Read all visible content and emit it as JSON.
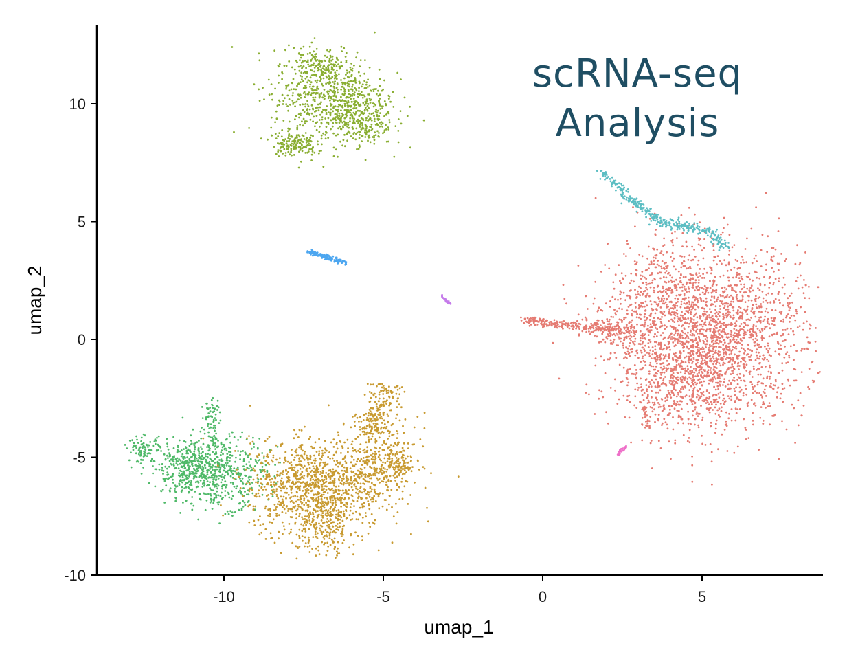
{
  "chart_data": {
    "type": "scatter",
    "title": "",
    "annotation": [
      "scRNA-seq",
      "Analysis"
    ],
    "xlabel": "umap_1",
    "ylabel": "umap_2",
    "xlim": [
      -14,
      8.8
    ],
    "ylim": [
      -10,
      13.5
    ],
    "xticks": [
      -10,
      -5,
      0,
      5
    ],
    "yticks": [
      -10,
      -5,
      0,
      5,
      10
    ],
    "xtick_labels": [
      "-10",
      "-5",
      "0",
      "5"
    ],
    "ytick_labels": [
      "-10",
      "-5",
      "0",
      "5",
      "10"
    ],
    "grid": false,
    "legend": "none",
    "colors": {
      "annotation": "#1f4e63",
      "axis": "#000000"
    },
    "series": [
      {
        "name": "cluster-salmon",
        "color": "#E57B72",
        "blobs": [
          {
            "cx": 5.2,
            "cy": 0.1,
            "sx": 1.5,
            "sy": 1.85,
            "n": 2400
          },
          {
            "cx": 4.3,
            "cy": -1.8,
            "sx": 0.9,
            "sy": 0.9,
            "n": 300
          },
          {
            "cx": 3.6,
            "cy": 2.5,
            "sx": 0.6,
            "sy": 1.0,
            "n": 150
          },
          {
            "cx": 2.5,
            "cy": 0.5,
            "sx": 0.5,
            "sy": 0.5,
            "n": 120
          }
        ],
        "lines": [
          {
            "x1": -0.6,
            "y1": 0.8,
            "x2": 2.8,
            "y2": 0.3,
            "n": 250,
            "spread": 0.12
          },
          {
            "x1": 3.2,
            "y1": -2.8,
            "x2": 3.3,
            "y2": -3.8,
            "n": 30,
            "spread": 0.05
          }
        ]
      },
      {
        "name": "cluster-olive",
        "color": "#8AAE32",
        "blobs": [
          {
            "cx": -6.7,
            "cy": 10.3,
            "sx": 0.9,
            "sy": 1.0,
            "n": 700
          },
          {
            "cx": -5.6,
            "cy": 9.3,
            "sx": 0.45,
            "sy": 0.55,
            "n": 200
          },
          {
            "cx": -7.8,
            "cy": 8.3,
            "sx": 0.35,
            "sy": 0.25,
            "n": 140
          },
          {
            "cx": -7.0,
            "cy": 11.6,
            "sx": 0.4,
            "sy": 0.35,
            "n": 100
          }
        ],
        "lines": []
      },
      {
        "name": "cluster-teal",
        "color": "#5DBEC3",
        "blobs": [],
        "lines": [
          {
            "x1": 1.9,
            "y1": 7.1,
            "x2": 2.7,
            "y2": 6.0,
            "n": 70,
            "spread": 0.09
          },
          {
            "x1": 2.7,
            "y1": 6.0,
            "x2": 3.6,
            "y2": 5.1,
            "n": 90,
            "spread": 0.1
          },
          {
            "x1": 3.6,
            "y1": 5.0,
            "x2": 5.3,
            "y2": 4.6,
            "n": 130,
            "spread": 0.13
          },
          {
            "x1": 5.2,
            "y1": 4.6,
            "x2": 5.7,
            "y2": 3.9,
            "n": 50,
            "spread": 0.12
          }
        ]
      },
      {
        "name": "cluster-blue",
        "color": "#4CA6F0",
        "blobs": [],
        "lines": [
          {
            "x1": -7.3,
            "y1": 3.7,
            "x2": -6.2,
            "y2": 3.25,
            "n": 150,
            "spread": 0.06
          }
        ]
      },
      {
        "name": "cluster-violet",
        "color": "#C57BEA",
        "blobs": [],
        "lines": [
          {
            "x1": -3.2,
            "y1": 1.85,
            "x2": -2.9,
            "y2": 1.5,
            "n": 25,
            "spread": 0.03
          }
        ]
      },
      {
        "name": "cluster-pink",
        "color": "#EE6FC8",
        "blobs": [],
        "lines": [
          {
            "x1": 2.35,
            "y1": -4.9,
            "x2": 2.6,
            "y2": -4.55,
            "n": 25,
            "spread": 0.03
          }
        ]
      },
      {
        "name": "cluster-green",
        "color": "#4FB968",
        "blobs": [
          {
            "cx": -10.3,
            "cy": -5.6,
            "sx": 0.8,
            "sy": 0.75,
            "n": 620
          },
          {
            "cx": -11.3,
            "cy": -5.4,
            "sx": 0.5,
            "sy": 0.45,
            "n": 180
          },
          {
            "cx": -12.5,
            "cy": -4.7,
            "sx": 0.25,
            "sy": 0.3,
            "n": 90
          }
        ],
        "lines": [
          {
            "x1": -10.3,
            "y1": -2.6,
            "x2": -10.4,
            "y2": -4.5,
            "n": 70,
            "spread": 0.14
          }
        ]
      },
      {
        "name": "cluster-gold",
        "color": "#C89A30",
        "blobs": [
          {
            "cx": -7.1,
            "cy": -6.2,
            "sx": 1.05,
            "sy": 0.95,
            "n": 1100
          },
          {
            "cx": -6.9,
            "cy": -8.0,
            "sx": 0.55,
            "sy": 0.55,
            "n": 200
          },
          {
            "cx": -5.0,
            "cy": -5.0,
            "sx": 0.55,
            "sy": 0.9,
            "n": 280
          },
          {
            "cx": -4.6,
            "cy": -5.4,
            "sx": 0.35,
            "sy": 0.35,
            "n": 90
          }
        ],
        "lines": [
          {
            "x1": -5.4,
            "y1": -4.0,
            "x2": -4.9,
            "y2": -1.9,
            "n": 180,
            "spread": 0.25
          }
        ]
      }
    ]
  }
}
